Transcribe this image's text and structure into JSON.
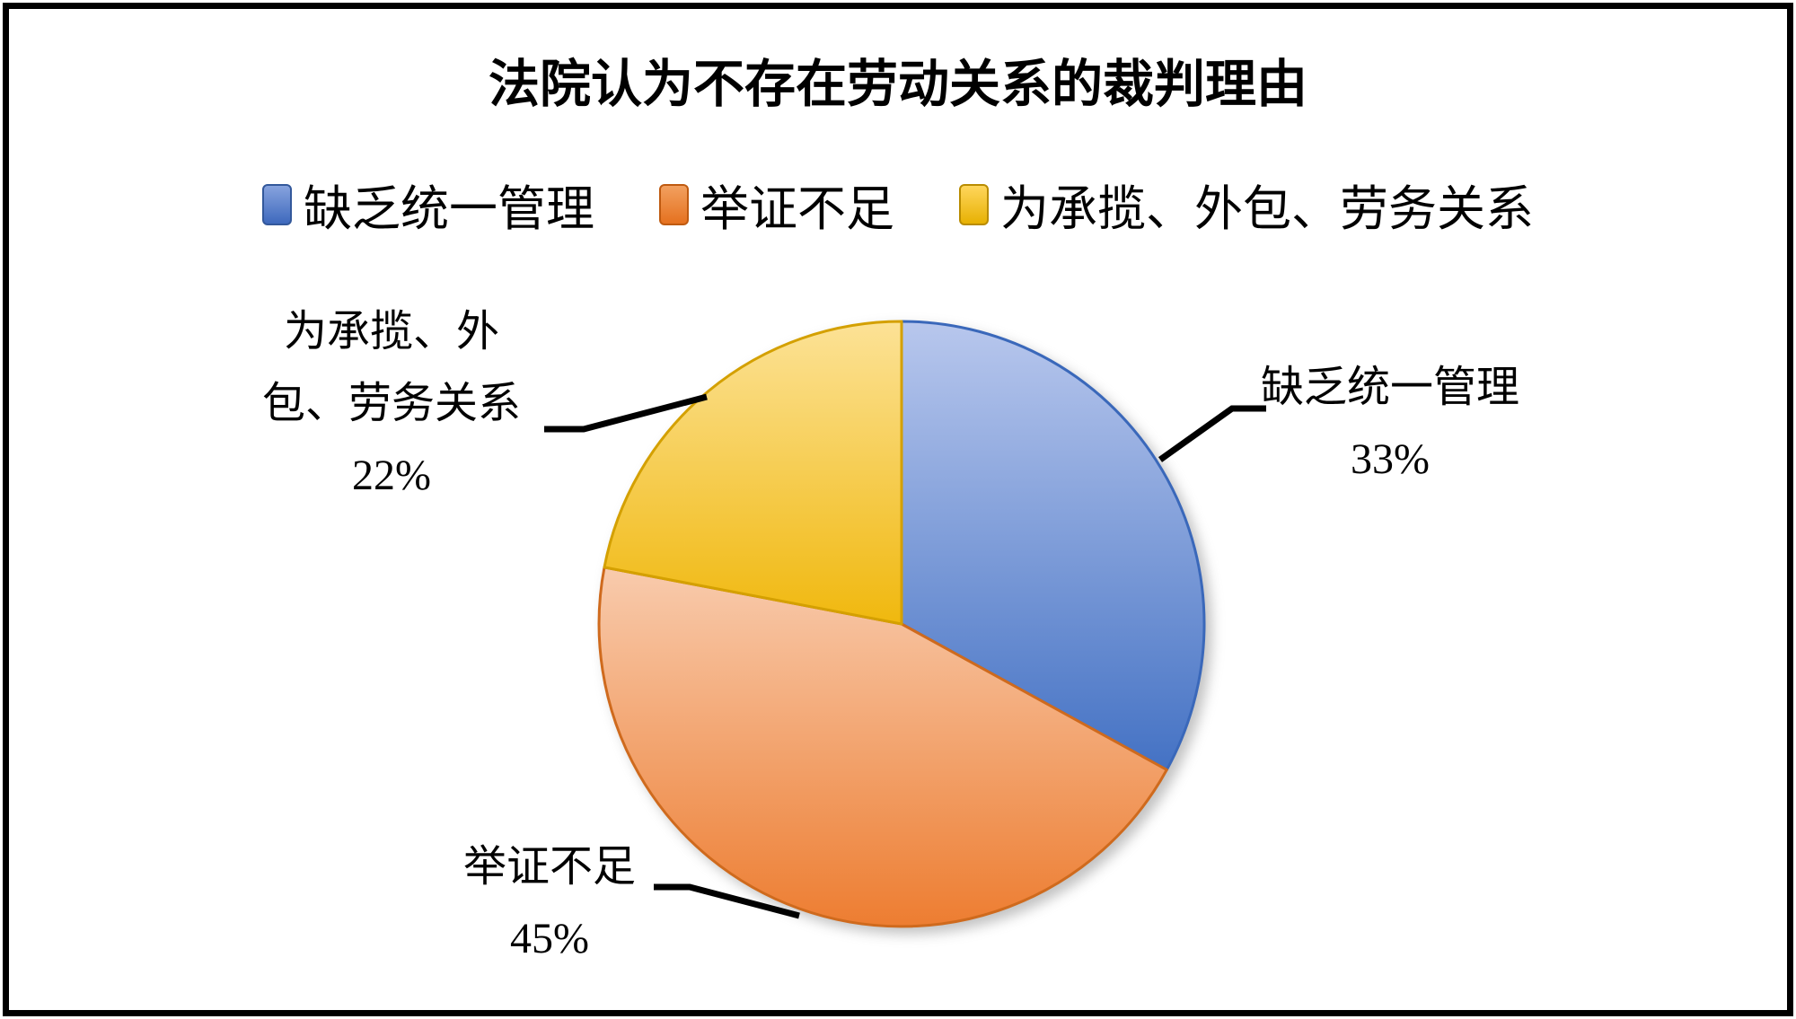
{
  "title": "法院认为不存在劳动关系的裁判理由",
  "legend": {
    "position": "top",
    "items": [
      {
        "label": "缺乏统一管理",
        "swatch_top": "#87a3de",
        "swatch_bottom": "#3e69bd",
        "swatch_border": "#33589b"
      },
      {
        "label": "举证不足",
        "swatch_top": "#f2a05f",
        "swatch_bottom": "#e5711f",
        "swatch_border": "#bf5a10"
      },
      {
        "label": "为承揽、外包、劳务关系",
        "swatch_top": "#ffd65c",
        "swatch_bottom": "#e7b103",
        "swatch_border": "#b98c00"
      }
    ]
  },
  "chart_data": {
    "type": "pie",
    "title": "法院认为不存在劳动关系的裁判理由",
    "categories": [
      "缺乏统一管理",
      "举证不足",
      "为承揽、外包、劳务关系"
    ],
    "values": [
      33,
      45,
      22
    ],
    "unit": "%",
    "start_angle_deg": 0,
    "direction": "clockwise",
    "legend_position": "top",
    "leader_line_color": "#000000",
    "slices": [
      {
        "label": "缺乏统一管理",
        "value": 33,
        "percent_text": "33%",
        "callout_lines": [
          "缺乏统一管理",
          "33%"
        ],
        "color_top": "#b8c7ed",
        "color_bottom": "#4472c4",
        "color_border": "#3a68ba"
      },
      {
        "label": "举证不足",
        "value": 45,
        "percent_text": "45%",
        "callout_lines": [
          "举证不足",
          "45%"
        ],
        "color_top": "#f8cbad",
        "color_bottom": "#ed7d31",
        "color_border": "#cf6a1d"
      },
      {
        "label": "为承揽、外包、劳务关系",
        "value": 22,
        "percent_text": "22%",
        "callout_lines": [
          "为承揽、外",
          "包、劳务关系",
          "22%"
        ],
        "color_top": "#fce296",
        "color_bottom": "#f0b80e",
        "color_border": "#d4a000"
      }
    ]
  }
}
